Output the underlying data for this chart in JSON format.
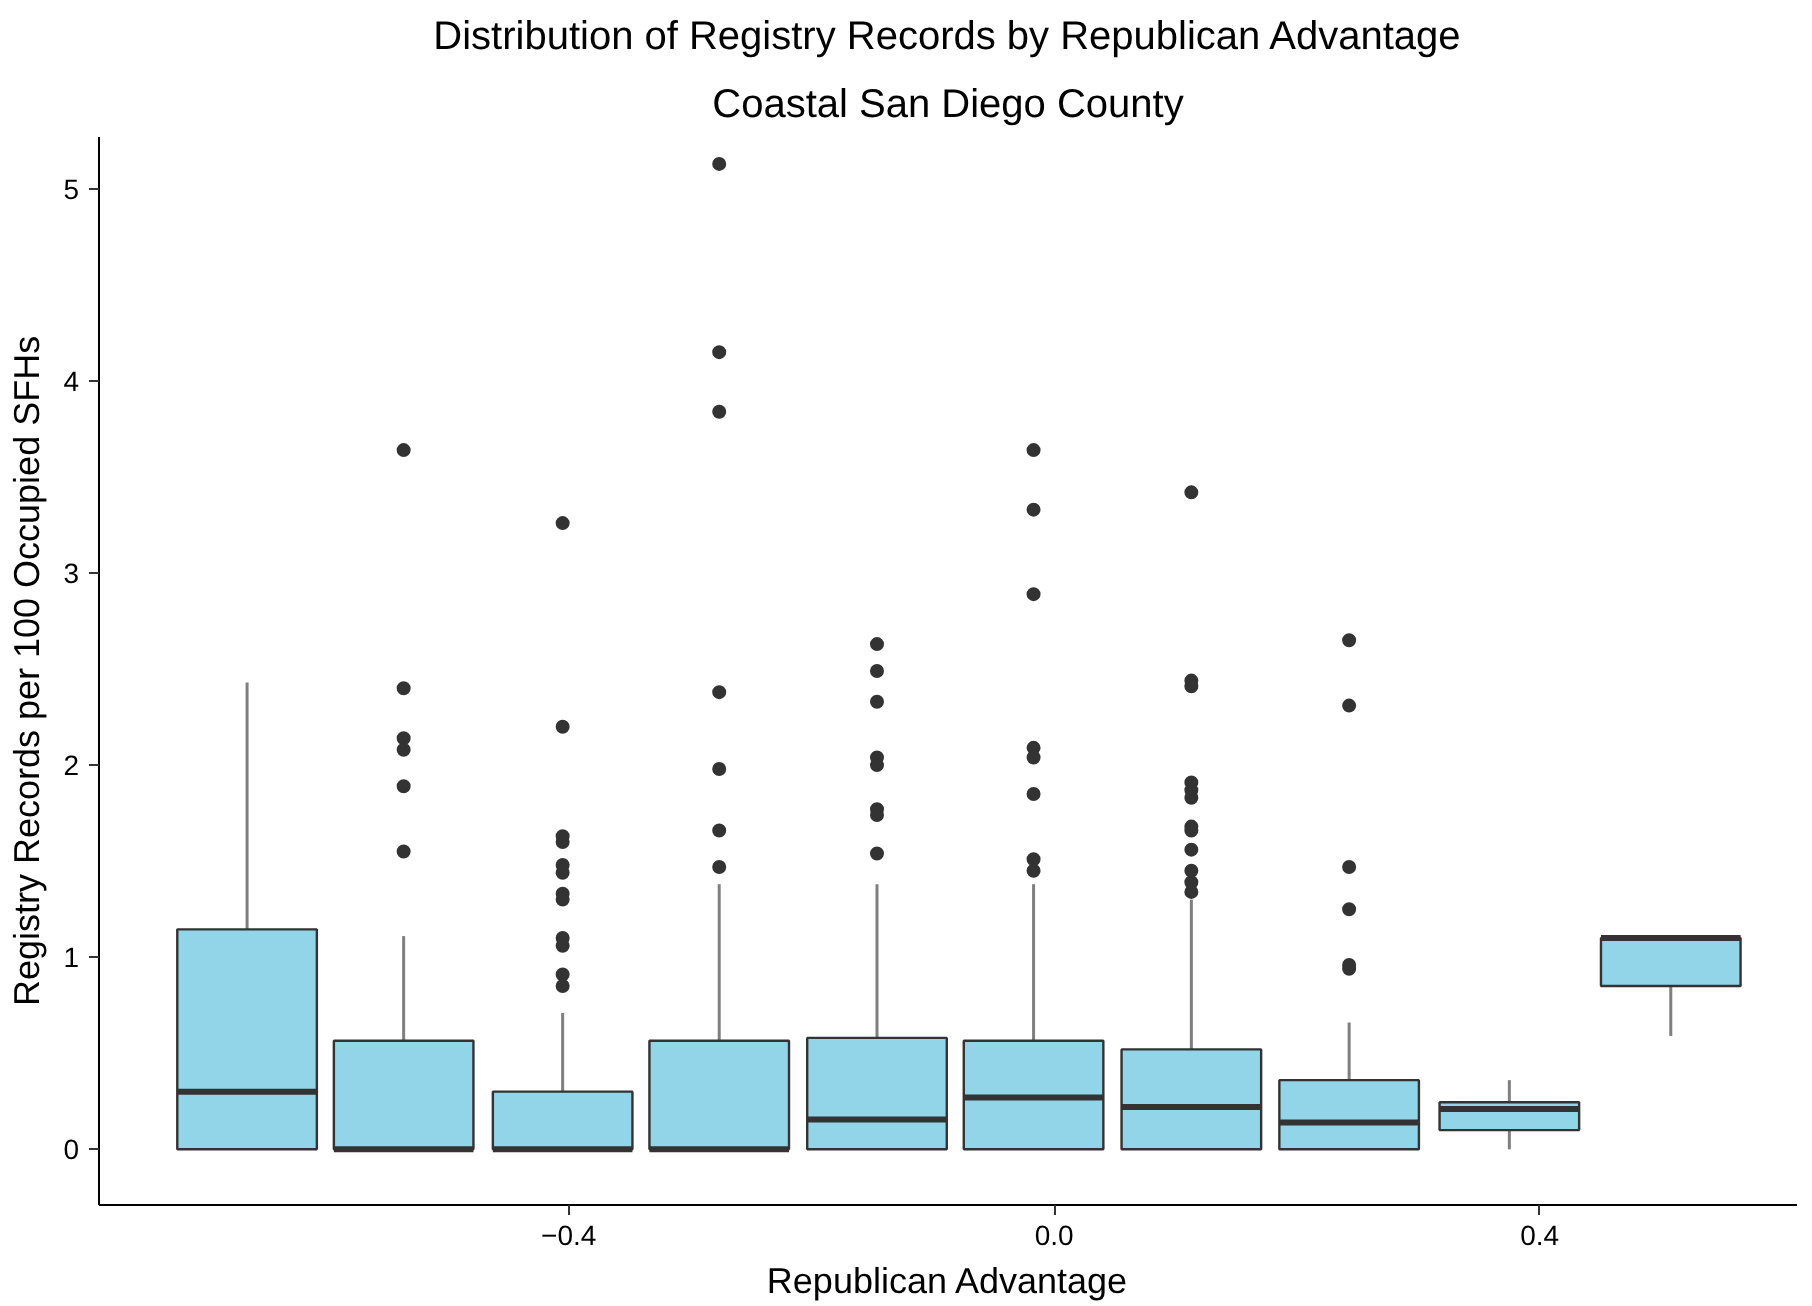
{
  "chart_data": {
    "type": "box",
    "title": "Distribution of Registry Records by Republican Advantage",
    "subtitle": "Coastal San Diego County",
    "xlabel": "Republican Advantage",
    "ylabel": "Registry Records per 100 Occupied SFHs",
    "x": [
      -0.665,
      -0.536,
      -0.405,
      -0.276,
      -0.146,
      -0.017,
      0.113,
      0.243,
      0.375,
      0.508
    ],
    "color": "#93d5e8",
    "boxes": [
      {
        "low": 0,
        "q1": 0,
        "median": 0.3,
        "q3": 1.145,
        "high": 2.43
      },
      {
        "low": 0,
        "q1": 0,
        "median": 0,
        "q3": 0.565,
        "high": 1.11,
        "outliers": [
          3.64,
          2.4,
          2.14,
          2.08,
          1.89,
          1.55
        ]
      },
      {
        "low": 0,
        "q1": 0,
        "median": 0,
        "q3": 0.3,
        "high": 0.71,
        "outliers": [
          3.26,
          2.2,
          1.63,
          1.6,
          1.48,
          1.44,
          1.33,
          1.3,
          1.1,
          1.06,
          0.91,
          0.85
        ]
      },
      {
        "low": 0,
        "q1": 0,
        "median": 0,
        "q3": 0.565,
        "high": 1.38,
        "outliers": [
          5.13,
          4.15,
          3.84,
          2.38,
          1.98,
          1.66,
          1.47
        ]
      },
      {
        "low": 0,
        "q1": 0,
        "median": 0.155,
        "q3": 0.58,
        "high": 1.38,
        "outliers": [
          2.63,
          2.49,
          2.33,
          2.04,
          2.0,
          1.77,
          1.74,
          1.54
        ]
      },
      {
        "low": 0,
        "q1": 0,
        "median": 0.27,
        "q3": 0.565,
        "high": 1.38,
        "outliers": [
          3.64,
          3.33,
          2.89,
          2.09,
          2.04,
          1.85,
          1.51,
          1.45
        ]
      },
      {
        "low": 0,
        "q1": 0,
        "median": 0.22,
        "q3": 0.52,
        "high": 1.3,
        "outliers": [
          3.42,
          2.44,
          2.41,
          1.91,
          1.87,
          1.83,
          1.68,
          1.66,
          1.56,
          1.45,
          1.39,
          1.34
        ]
      },
      {
        "low": 0,
        "q1": 0,
        "median": 0.14,
        "q3": 0.36,
        "high": 0.66,
        "outliers": [
          2.65,
          2.31,
          1.47,
          1.25,
          0.96,
          0.94
        ]
      },
      {
        "low": 0,
        "q1": 0.1,
        "median": 0.21,
        "q3": 0.245,
        "high": 0.36
      },
      {
        "low": 0.59,
        "q1": 0.85,
        "median": 1.1,
        "q3": 1.1,
        "high": 1.1
      }
    ],
    "xlim": [
      -0.787,
      0.612
    ],
    "ylim": [
      -0.29,
      5.27
    ],
    "xticks": [
      -0.4,
      {
        "value": 0,
        "label": "0.0"
      },
      0.4
    ],
    "yticks": [
      0,
      1,
      2,
      3,
      4,
      5
    ],
    "grid": false
  }
}
